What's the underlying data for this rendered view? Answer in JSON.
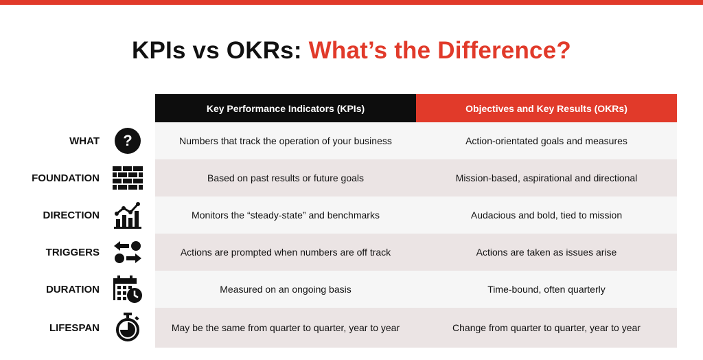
{
  "title": {
    "prefix": "KPIs vs OKRs: ",
    "accent": "What’s the Difference?"
  },
  "colors": {
    "accent": "#e13a2a",
    "header_dark": "#0d0d0d",
    "row_light": "#f6f6f6",
    "row_shaded": "#ebe4e4"
  },
  "headers": {
    "kpi": "Key Performance Indicators (KPIs)",
    "okr": "Objectives and Key Results (OKRs)"
  },
  "rows": [
    {
      "label": "WHAT",
      "icon": "question-icon",
      "kpi": "Numbers that track the operation of your business",
      "okr": "Action-orientated goals and measures"
    },
    {
      "label": "FOUNDATION",
      "icon": "brick-wall-icon",
      "kpi": "Based on past results or future goals",
      "okr": "Mission-based, aspirational and directional"
    },
    {
      "label": "DIRECTION",
      "icon": "growth-chart-icon",
      "kpi": "Monitors the “steady-state” and benchmarks",
      "okr": "Audacious and bold, tied to mission"
    },
    {
      "label": "TRIGGERS",
      "icon": "swap-arrows-icon",
      "kpi": "Actions are prompted when numbers are off track",
      "okr": "Actions are taken as issues arise"
    },
    {
      "label": "DURATION",
      "icon": "calendar-clock-icon",
      "kpi": "Measured on an ongoing basis",
      "okr": "Time-bound, often quarterly"
    },
    {
      "label": "LIFESPAN",
      "icon": "stopwatch-icon",
      "kpi": "May be the same from quarter to quarter, year to year",
      "okr": "Change from quarter to quarter, year to year"
    }
  ]
}
